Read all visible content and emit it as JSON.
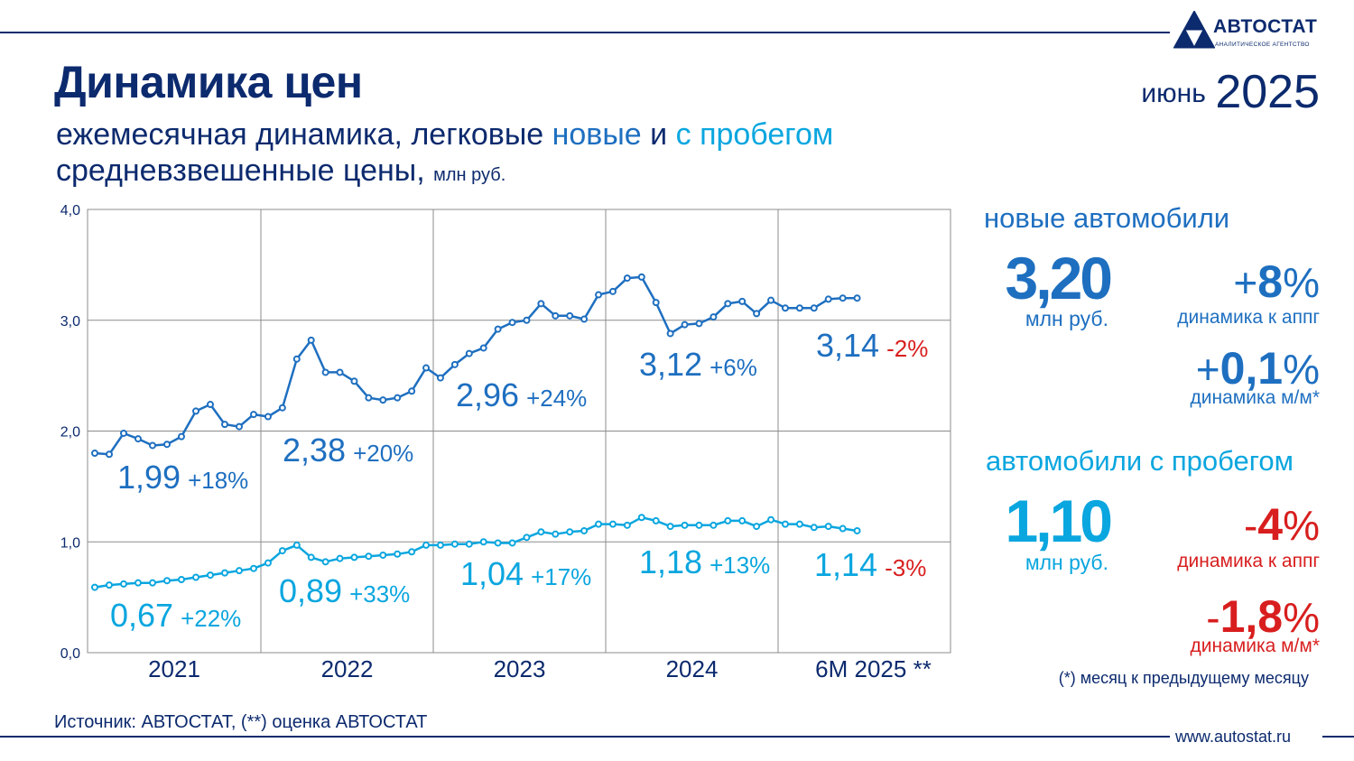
{
  "brand": {
    "name": "АВТОСТАТ",
    "tagline": "АНАЛИТИЧЕСКОЕ АГЕНТСТВО"
  },
  "header": {
    "title": "Динамика цен",
    "month": "июнь",
    "year": "2025",
    "subtitle_part1": "ежемесячная динамика, легковые ",
    "subtitle_new": "новые",
    "subtitle_and": " и ",
    "subtitle_used": "с пробегом",
    "subtitle2": "средневзвешенные цены,",
    "subtitle2_unit": "млн руб."
  },
  "colors": {
    "navy": "#0c2a6e",
    "new": "#1e6fc0",
    "used": "#0aa6df",
    "red": "#d81e1e",
    "grid": "#8c8c8c"
  },
  "chart_data": {
    "type": "line",
    "ylim": [
      0,
      4
    ],
    "yticks": [
      "0,0",
      "1,0",
      "2,0",
      "3,0",
      "4,0"
    ],
    "period_labels": [
      "2021",
      "2022",
      "2023",
      "2024",
      "6M 2025 **"
    ],
    "series": [
      {
        "values": [
          1.8,
          1.79,
          1.98,
          1.93,
          1.87,
          1.88,
          1.95,
          2.18,
          2.24,
          2.06,
          2.04,
          2.15,
          2.13,
          2.21,
          2.65,
          2.82,
          2.53,
          2.53,
          2.45,
          2.3,
          2.28,
          2.3,
          2.36,
          2.57,
          2.48,
          2.6,
          2.7,
          2.75,
          2.92,
          2.98,
          3.0,
          3.15,
          3.04,
          3.04,
          3.01,
          3.23,
          3.26,
          3.38,
          3.39,
          3.16,
          2.88,
          2.96,
          2.97,
          3.03,
          3.15,
          3.17,
          3.06,
          3.18,
          3.11,
          3.11,
          3.11,
          3.19,
          3.2,
          3.2
        ],
        "annotations": [
          {
            "value": "1,99",
            "change": "+18%"
          },
          {
            "value": "2,38",
            "change": "+20%"
          },
          {
            "value": "2,96",
            "change": "+24%"
          },
          {
            "value": "3,12",
            "change": "+6%"
          },
          {
            "value": "3,14",
            "change": "-2%"
          }
        ]
      },
      {
        "values": [
          0.59,
          0.61,
          0.62,
          0.63,
          0.63,
          0.65,
          0.66,
          0.68,
          0.7,
          0.72,
          0.74,
          0.76,
          0.81,
          0.92,
          0.97,
          0.86,
          0.82,
          0.85,
          0.86,
          0.87,
          0.88,
          0.89,
          0.91,
          0.97,
          0.97,
          0.98,
          0.98,
          1.0,
          0.99,
          0.99,
          1.04,
          1.09,
          1.07,
          1.09,
          1.1,
          1.16,
          1.16,
          1.15,
          1.22,
          1.19,
          1.14,
          1.15,
          1.15,
          1.15,
          1.19,
          1.19,
          1.14,
          1.2,
          1.16,
          1.16,
          1.13,
          1.14,
          1.12,
          1.1
        ],
        "annotations": [
          {
            "value": "0,67",
            "change": "+22%"
          },
          {
            "value": "0,89",
            "change": "+33%"
          },
          {
            "value": "1,04",
            "change": "+17%"
          },
          {
            "value": "1,18",
            "change": "+13%"
          },
          {
            "value": "1,14",
            "change": "-3%"
          }
        ]
      }
    ]
  },
  "panel": {
    "new": {
      "title": "новые автомобили",
      "price": "3,20",
      "unit": "млн руб.",
      "yoy_sign": "+",
      "yoy_num": "8",
      "yoy_pct": "%",
      "yoy_label": "динамика к аппг",
      "mom_sign": "+",
      "mom_num": "0,1",
      "mom_pct": "%",
      "mom_label": "динамика м/м*"
    },
    "used": {
      "title": "автомобили с пробегом",
      "price": "1,10",
      "unit": "млн руб.",
      "yoy_sign": "-",
      "yoy_num": "4",
      "yoy_pct": "%",
      "yoy_label": "динамика к аппг",
      "mom_sign": "-",
      "mom_num": "1,8",
      "mom_pct": "%",
      "mom_label": "динамика м/м*"
    },
    "footnote": "(*) месяц к предыдущему месяцу"
  },
  "footer": {
    "source": "Источник: АВТОСТАТ, (**) оценка АВТОСТАТ",
    "site": "www.autostat.ru"
  }
}
